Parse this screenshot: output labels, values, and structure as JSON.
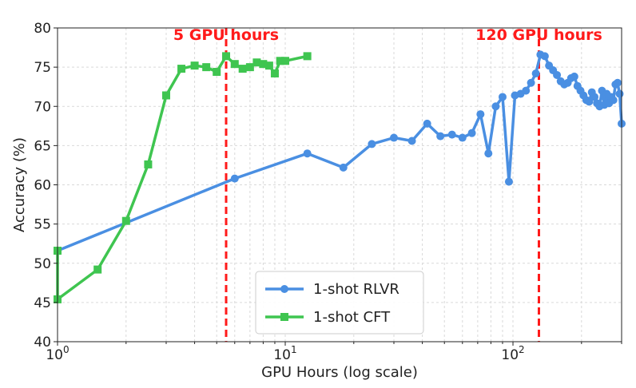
{
  "chart_data": {
    "type": "line",
    "title": "",
    "xlabel": "GPU Hours (log scale)",
    "ylabel": "Accuracy (%)",
    "x_scale": "log",
    "xlim": [
      1,
      300
    ],
    "ylim": [
      40,
      80
    ],
    "y_ticks": [
      "40",
      "45",
      "50",
      "55",
      "60",
      "65",
      "70",
      "75",
      "80"
    ],
    "x_major_ticks": [
      {
        "value": 1,
        "base": "10",
        "exp": "0"
      },
      {
        "value": 10,
        "base": "10",
        "exp": "1"
      },
      {
        "value": 100,
        "base": "10",
        "exp": "2"
      }
    ],
    "grid": true,
    "legend_position": "lower-center",
    "vlines": [
      {
        "x": 5.5,
        "label": "5 GPU hours",
        "color": "#ff1a1a"
      },
      {
        "x": 130,
        "label": "120 GPU hours",
        "color": "#ff1a1a"
      }
    ],
    "series": [
      {
        "name": "1-shot RLVR",
        "color": "#4a8fe2",
        "marker": "circle",
        "points": [
          [
            1.0,
            51.6
          ],
          [
            6.0,
            60.8
          ],
          [
            12.5,
            64.0
          ],
          [
            18.0,
            62.2
          ],
          [
            24.0,
            65.2
          ],
          [
            30.0,
            66.0
          ],
          [
            36.0,
            65.6
          ],
          [
            42.0,
            67.8
          ],
          [
            48.0,
            66.2
          ],
          [
            54.0,
            66.4
          ],
          [
            60.0,
            66.0
          ],
          [
            66.0,
            66.6
          ],
          [
            72.0,
            69.0
          ],
          [
            78.0,
            64.0
          ],
          [
            84.0,
            70.0
          ],
          [
            90.0,
            71.2
          ],
          [
            96.0,
            60.4
          ],
          [
            102.0,
            71.4
          ],
          [
            108.0,
            71.6
          ],
          [
            114.0,
            72.0
          ],
          [
            120.0,
            73.0
          ],
          [
            126.0,
            74.2
          ],
          [
            132.0,
            76.6
          ],
          [
            138.0,
            76.4
          ],
          [
            144.0,
            75.2
          ],
          [
            150.0,
            74.6
          ],
          [
            156.0,
            74.0
          ],
          [
            162.0,
            73.2
          ],
          [
            168.0,
            72.8
          ],
          [
            174.0,
            73.0
          ],
          [
            180.0,
            73.6
          ],
          [
            186.0,
            73.8
          ],
          [
            192.0,
            72.6
          ],
          [
            198.0,
            72.0
          ],
          [
            204.0,
            71.4
          ],
          [
            210.0,
            70.8
          ],
          [
            216.0,
            70.6
          ],
          [
            222.0,
            71.8
          ],
          [
            228.0,
            71.2
          ],
          [
            234.0,
            70.4
          ],
          [
            240.0,
            70.0
          ],
          [
            246.0,
            72.0
          ],
          [
            252.0,
            70.2
          ],
          [
            258.0,
            71.6
          ],
          [
            264.0,
            70.4
          ],
          [
            270.0,
            71.2
          ],
          [
            276.0,
            70.8
          ],
          [
            282.0,
            72.8
          ],
          [
            288.0,
            73.0
          ],
          [
            294.0,
            71.6
          ],
          [
            300.0,
            67.8
          ]
        ]
      },
      {
        "name": "1-shot CFT",
        "color": "#3fc550",
        "marker": "square",
        "points": [
          [
            1.0,
            51.6
          ],
          [
            1.0,
            45.4
          ],
          [
            1.5,
            49.2
          ],
          [
            2.0,
            55.4
          ],
          [
            2.5,
            62.6
          ],
          [
            3.0,
            71.4
          ],
          [
            3.5,
            74.8
          ],
          [
            4.0,
            75.2
          ],
          [
            4.5,
            75.0
          ],
          [
            5.0,
            74.4
          ],
          [
            5.5,
            76.4
          ],
          [
            6.0,
            75.4
          ],
          [
            6.5,
            74.8
          ],
          [
            7.0,
            75.0
          ],
          [
            7.5,
            75.6
          ],
          [
            8.0,
            75.4
          ],
          [
            8.5,
            75.2
          ],
          [
            9.0,
            74.2
          ],
          [
            9.5,
            75.8
          ],
          [
            10.0,
            75.8
          ],
          [
            12.5,
            76.4
          ]
        ]
      }
    ]
  }
}
